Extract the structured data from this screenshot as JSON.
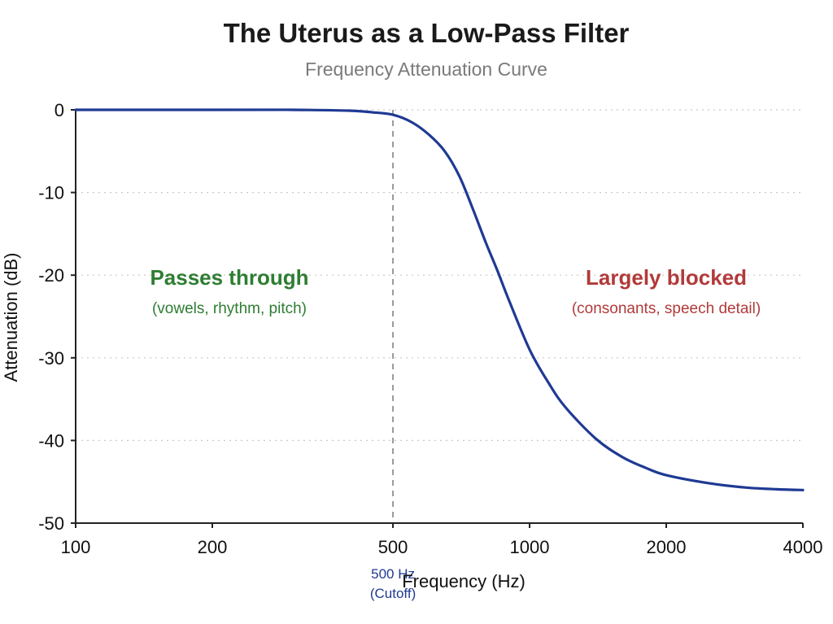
{
  "chart_data": {
    "type": "line",
    "title": "The Uterus as a Low-Pass Filter",
    "subtitle": "Frequency Attenuation Curve",
    "xlabel": "Frequency (Hz)",
    "ylabel": "Attenuation (dB)",
    "xscale": "log",
    "xlim": [
      100,
      4000
    ],
    "ylim": [
      -50,
      0
    ],
    "x_ticks": [
      100,
      200,
      500,
      1000,
      2000,
      4000
    ],
    "x_tick_labels": [
      "100",
      "200",
      "500",
      "1000",
      "2000",
      "4000"
    ],
    "y_ticks": [
      0,
      -10,
      -20,
      -30,
      -40,
      -50
    ],
    "y_tick_labels": [
      "0",
      "-10",
      "-20",
      "-30",
      "-40",
      "-50"
    ],
    "grid": "horizontal dotted",
    "series": [
      {
        "x": [
          100,
          200,
          300,
          400,
          450,
          500,
          550,
          600,
          650,
          700,
          750,
          800,
          850,
          900,
          1000,
          1100,
          1200,
          1400,
          1600,
          1800,
          2000,
          2500,
          3000,
          3500,
          4000
        ],
        "y": [
          0,
          0,
          0,
          -0.1,
          -0.3,
          -0.6,
          -1.5,
          -3,
          -5,
          -8,
          -12,
          -16,
          -19.5,
          -23,
          -29,
          -33,
          -36,
          -39.8,
          -42,
          -43.3,
          -44.2,
          -45.2,
          -45.7,
          -45.9,
          -46
        ]
      }
    ],
    "line_color": "#1f3a93",
    "cutoff": {
      "x": 500,
      "label_value": "500 Hz",
      "label_note": "(Cutoff)",
      "color": "#9a9a9a"
    },
    "annotations": [
      {
        "heading": "Passes through",
        "detail": "(vowels, rhythm, pitch)",
        "color": "#2e7d32",
        "anchor_x": 200,
        "anchor_y": -20
      },
      {
        "heading": "Largely blocked",
        "detail": "(consonants, speech detail)",
        "color": "#b23a3a",
        "anchor_x": 2000,
        "anchor_y": -20
      }
    ]
  }
}
